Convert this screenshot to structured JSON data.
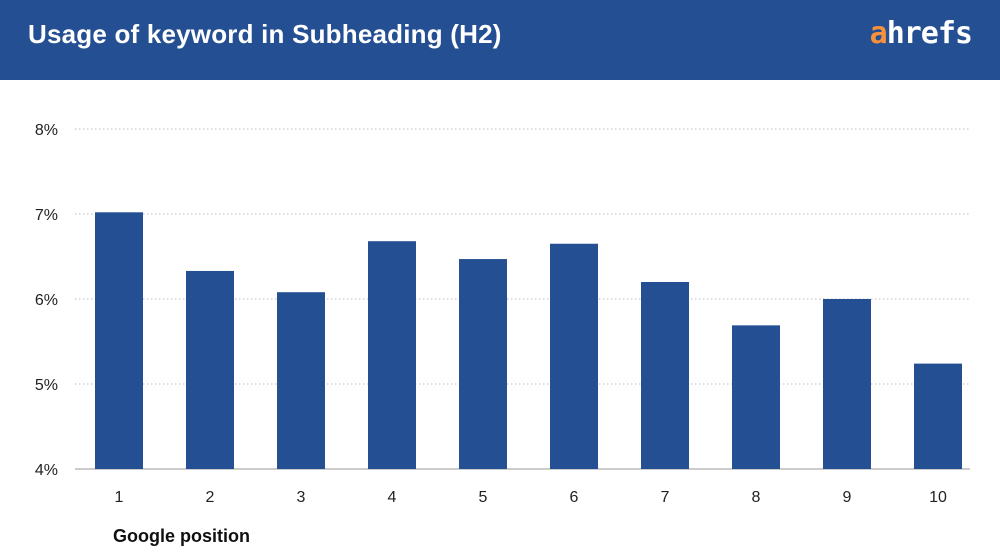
{
  "header": {
    "title": "Usage of keyword in Subheading (H2)",
    "logo_a": "a",
    "logo_rest": "hrefs"
  },
  "colors": {
    "header_bg": "#244f92",
    "bar": "#244f92",
    "logo_accent": "#f7913d",
    "grid": "#bbbbbb"
  },
  "chart_data": {
    "type": "bar",
    "categories": [
      "1",
      "2",
      "3",
      "4",
      "5",
      "6",
      "7",
      "8",
      "9",
      "10"
    ],
    "values": [
      7.02,
      6.33,
      6.08,
      6.68,
      6.47,
      6.65,
      6.2,
      5.69,
      6.0,
      5.24
    ],
    "ylim": [
      4,
      8
    ],
    "yticks": [
      4,
      5,
      6,
      7,
      8
    ],
    "ytick_labels": [
      "4%",
      "5%",
      "6%",
      "7%",
      "8%"
    ],
    "xlabel": "Google position",
    "ylabel": "",
    "grid": "horizontal dotted",
    "legend": "none"
  }
}
